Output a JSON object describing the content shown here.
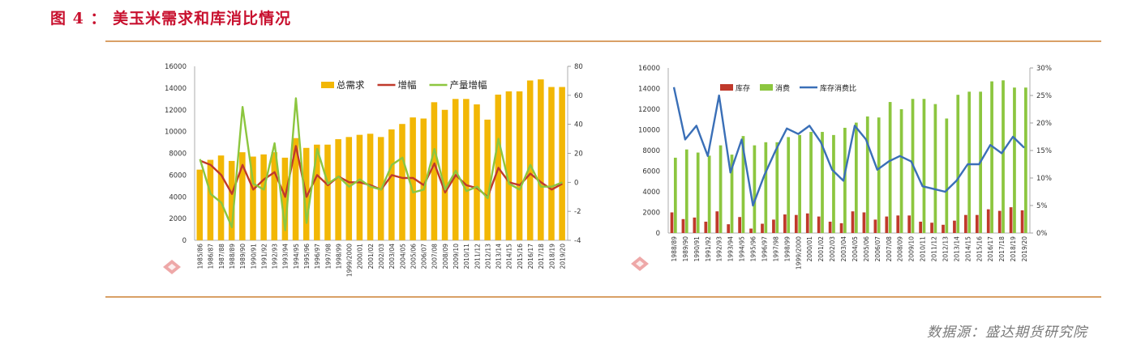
{
  "figure": {
    "title": "图 4 ： 美玉米需求和库消比情况",
    "source": "数据源：盛达期货研究院",
    "accent_color": "#c8102e",
    "rule_color": "#d9a066",
    "watermark_icon": "diamond-logo-icon"
  },
  "chart_data": [
    {
      "type": "bar",
      "title": "",
      "categories": [
        "1985/86",
        "1986/87",
        "1987/88",
        "1988/89",
        "1989/90",
        "1990/91",
        "1991/92",
        "1992/93",
        "1993/94",
        "1994/95",
        "1995/96",
        "1996/97",
        "1997/98",
        "1998/99",
        "1999/2000",
        "2000/01",
        "2001/02",
        "2002/03",
        "2003/04",
        "2004/05",
        "2005/06",
        "2006/07",
        "2007/08",
        "2008/09",
        "2009/10",
        "2010/11",
        "2011/12",
        "2012/13",
        "2013/14",
        "2014/15",
        "2015/16",
        "2016/17",
        "2017/18",
        "2018/19",
        "2019/20"
      ],
      "y_ticks": [
        "0",
        "2000",
        "4000",
        "6000",
        "8000",
        "10000",
        "12000",
        "14000",
        "16000"
      ],
      "y2_ticks": [
        "-4",
        "-2",
        "0",
        "20",
        "40",
        "60",
        "80"
      ],
      "ylim": [
        0,
        16000
      ],
      "y2lim": [
        -40,
        80
      ],
      "legend_position": "top-center",
      "series": [
        {
          "name": "总需求",
          "kind": "bar",
          "axis": "left",
          "color": "#f2b705",
          "values": [
            6500,
            7400,
            7800,
            7300,
            8100,
            7700,
            7900,
            8100,
            7600,
            9400,
            8500,
            8800,
            8800,
            9300,
            9500,
            9700,
            9800,
            9500,
            10200,
            10700,
            11300,
            11200,
            12700,
            12000,
            13000,
            13000,
            12500,
            11100,
            13400,
            13700,
            13700,
            14700,
            14800,
            14100,
            14100
          ]
        },
        {
          "name": "增幅",
          "kind": "line",
          "axis": "right",
          "color": "#c0392b",
          "values": [
            15,
            12,
            5,
            -8,
            12,
            -5,
            2,
            7,
            -10,
            25,
            -10,
            5,
            -2,
            4,
            0,
            0,
            -2,
            -5,
            5,
            3,
            3,
            -2,
            13,
            -7,
            5,
            -2,
            -4,
            -10,
            10,
            0,
            -2,
            6,
            0,
            -5,
            -1
          ]
        },
        {
          "name": "产量增幅",
          "kind": "line",
          "axis": "right",
          "color": "#8cc63f",
          "values": [
            16,
            -8,
            -14,
            -31,
            52,
            -1,
            -5,
            27,
            -33,
            58,
            -28,
            23,
            -1,
            4,
            -3,
            2,
            -3,
            -5,
            12,
            17,
            -7,
            -5,
            23,
            -5,
            8,
            -6,
            -3,
            -11,
            30,
            -1,
            -5,
            12,
            -3,
            -3,
            0
          ]
        }
      ]
    },
    {
      "type": "bar",
      "title": "",
      "categories": [
        "1988/89",
        "1989/90",
        "1990/91",
        "1991/92",
        "1992/93",
        "1993/94",
        "1994/95",
        "1995/96",
        "1996/97",
        "1997/98",
        "1998/99",
        "1999/2000",
        "2000/01",
        "2001/02",
        "2002/03",
        "2003/04",
        "2004/05",
        "2005/06",
        "2006/07",
        "2007/08",
        "2008/09",
        "2009/10",
        "2010/11",
        "2011/12",
        "2012/13",
        "2013/14",
        "2014/15",
        "2015/16",
        "2016/17",
        "2017/18",
        "2018/19",
        "2019/20"
      ],
      "y_ticks": [
        "0",
        "2000",
        "4000",
        "6000",
        "8000",
        "10000",
        "12000",
        "14000",
        "16000"
      ],
      "y2_ticks": [
        "0%",
        "5%",
        "10%",
        "15%",
        "20%",
        "25%",
        "30%"
      ],
      "ylim": [
        0,
        16000
      ],
      "y2lim": [
        0,
        30
      ],
      "legend_position": "top-left",
      "series": [
        {
          "name": "库存",
          "kind": "bar",
          "axis": "left",
          "color": "#c0392b",
          "values": [
            2000,
            1350,
            1500,
            1100,
            2100,
            850,
            1550,
            430,
            900,
            1300,
            1800,
            1750,
            1900,
            1600,
            1100,
            950,
            2100,
            2000,
            1300,
            1600,
            1700,
            1700,
            1100,
            1000,
            800,
            1200,
            1750,
            1750,
            2300,
            2150,
            2500,
            2200
          ]
        },
        {
          "name": "消费",
          "kind": "bar",
          "axis": "left",
          "color": "#8cc63f",
          "values": [
            7300,
            8100,
            7800,
            7500,
            8500,
            7600,
            9400,
            8500,
            8800,
            8800,
            9300,
            9500,
            9800,
            9800,
            9500,
            10200,
            10700,
            11300,
            11200,
            12700,
            12000,
            13000,
            13000,
            12500,
            11100,
            13400,
            13700,
            13700,
            14700,
            14800,
            14100,
            14100
          ]
        },
        {
          "name": "库存消费比",
          "kind": "line",
          "axis": "right",
          "color": "#3a6fb7",
          "values": [
            26.5,
            17,
            19.5,
            14,
            25,
            11,
            17,
            5,
            10.5,
            15,
            19,
            18,
            19.5,
            16.5,
            11.5,
            9.5,
            19.5,
            17,
            11.5,
            13,
            14,
            13,
            8.5,
            8,
            7.5,
            9.5,
            12.5,
            12.5,
            16,
            14.5,
            17.5,
            15.5
          ]
        }
      ]
    }
  ]
}
